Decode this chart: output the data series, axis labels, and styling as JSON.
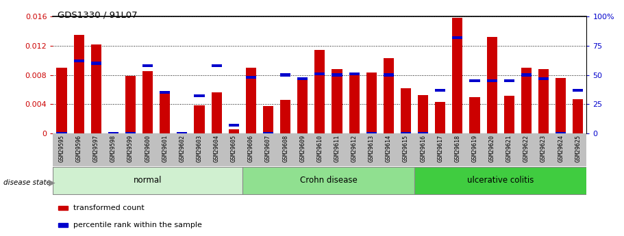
{
  "title": "GDS1330 / 91L07",
  "samples": [
    "GSM29595",
    "GSM29596",
    "GSM29597",
    "GSM29598",
    "GSM29599",
    "GSM29600",
    "GSM29601",
    "GSM29602",
    "GSM29603",
    "GSM29604",
    "GSM29605",
    "GSM29606",
    "GSM29607",
    "GSM29608",
    "GSM29609",
    "GSM29610",
    "GSM29611",
    "GSM29612",
    "GSM29613",
    "GSM29614",
    "GSM29615",
    "GSM29616",
    "GSM29617",
    "GSM29618",
    "GSM29619",
    "GSM29620",
    "GSM29621",
    "GSM29622",
    "GSM29623",
    "GSM29624",
    "GSM29625"
  ],
  "transformed_count": [
    0.009,
    0.0135,
    0.0122,
    0.0,
    0.0079,
    0.0085,
    0.0056,
    0.0,
    0.0038,
    0.0056,
    0.0006,
    0.009,
    0.0037,
    0.0046,
    0.0075,
    0.0114,
    0.0088,
    0.0083,
    0.0083,
    0.0103,
    0.0062,
    0.0052,
    0.0043,
    0.0158,
    0.005,
    0.0132,
    0.0051,
    0.009,
    0.0088,
    0.0076,
    0.0047
  ],
  "percentile_val": [
    0.0,
    62,
    60,
    0.0,
    0.0,
    58,
    35,
    0.0,
    32,
    58,
    7,
    48,
    0.0,
    50,
    47,
    51,
    50,
    51,
    0.0,
    50,
    0.0,
    0.0,
    37,
    82,
    45,
    45,
    45,
    50,
    47,
    0.0,
    37
  ],
  "groups": [
    {
      "label": "normal",
      "start": 0,
      "end": 11,
      "color": "#d0f0d0"
    },
    {
      "label": "Crohn disease",
      "start": 11,
      "end": 21,
      "color": "#90e090"
    },
    {
      "label": "ulcerative colitis",
      "start": 21,
      "end": 31,
      "color": "#40cc40"
    }
  ],
  "ylim_left": [
    0,
    0.016
  ],
  "ylim_right": [
    0,
    100
  ],
  "bar_color": "#cc0000",
  "percentile_color": "#0000cc",
  "background_color": "#ffffff",
  "label_color_left": "#cc0000",
  "label_color_right": "#0000cc",
  "xlabel_bg": "#c0c0c0"
}
